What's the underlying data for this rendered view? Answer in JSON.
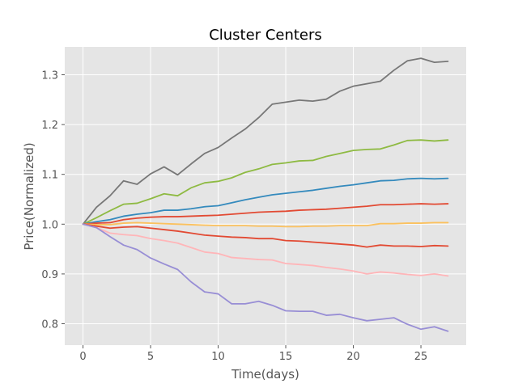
{
  "chart_data": {
    "type": "line",
    "title": "Cluster Centers",
    "xlabel": "Time(days)",
    "ylabel": "Price(Normalized)",
    "xlim": [
      -1.35,
      28.35
    ],
    "ylim": [
      0.757,
      1.356
    ],
    "xticks": [
      0,
      5,
      10,
      15,
      20,
      25
    ],
    "yticks": [
      0.8,
      0.9,
      1.0,
      1.1,
      1.2,
      1.3
    ],
    "ytick_labels": [
      "0.8",
      "0.9",
      "1.0",
      "1.1",
      "1.2",
      "1.3"
    ],
    "grid": true,
    "x": [
      0,
      1,
      2,
      3,
      4,
      5,
      6,
      7,
      8,
      9,
      10,
      11,
      12,
      13,
      14,
      15,
      16,
      17,
      18,
      19,
      20,
      21,
      22,
      23,
      24,
      25,
      26,
      27
    ],
    "series": [
      {
        "color": "#777777",
        "values": [
          1.0,
          1.034,
          1.057,
          1.087,
          1.08,
          1.101,
          1.115,
          1.099,
          1.121,
          1.142,
          1.154,
          1.173,
          1.191,
          1.214,
          1.241,
          1.245,
          1.249,
          1.247,
          1.251,
          1.267,
          1.277,
          1.282,
          1.287,
          1.309,
          1.328,
          1.333,
          1.325,
          1.327
        ]
      },
      {
        "color": "#8EBA42",
        "values": [
          1.0,
          1.013,
          1.027,
          1.04,
          1.042,
          1.051,
          1.061,
          1.057,
          1.073,
          1.083,
          1.086,
          1.093,
          1.104,
          1.111,
          1.12,
          1.123,
          1.127,
          1.128,
          1.136,
          1.142,
          1.148,
          1.15,
          1.151,
          1.159,
          1.168,
          1.169,
          1.167,
          1.169
        ]
      },
      {
        "color": "#348ABD",
        "values": [
          1.0,
          1.005,
          1.009,
          1.016,
          1.02,
          1.023,
          1.028,
          1.028,
          1.031,
          1.035,
          1.037,
          1.043,
          1.049,
          1.054,
          1.059,
          1.062,
          1.065,
          1.068,
          1.072,
          1.076,
          1.079,
          1.083,
          1.087,
          1.088,
          1.091,
          1.092,
          1.091,
          1.092
        ]
      },
      {
        "color": "#E24A33",
        "values": [
          1.0,
          1.002,
          1.003,
          1.009,
          1.012,
          1.014,
          1.015,
          1.015,
          1.016,
          1.017,
          1.018,
          1.02,
          1.022,
          1.024,
          1.025,
          1.026,
          1.028,
          1.029,
          1.03,
          1.032,
          1.034,
          1.036,
          1.039,
          1.039,
          1.04,
          1.041,
          1.04,
          1.041
        ]
      },
      {
        "color": "#FBC15E",
        "values": [
          1.0,
          0.999,
          0.999,
          1.002,
          1.003,
          1.002,
          1.001,
          1.0,
          0.999,
          0.998,
          0.997,
          0.997,
          0.997,
          0.996,
          0.996,
          0.995,
          0.995,
          0.996,
          0.996,
          0.997,
          0.997,
          0.997,
          1.001,
          1.001,
          1.002,
          1.002,
          1.003,
          1.003
        ]
      },
      {
        "color": "#E24A33",
        "values": [
          1.0,
          0.996,
          0.992,
          0.994,
          0.995,
          0.992,
          0.989,
          0.986,
          0.982,
          0.978,
          0.976,
          0.974,
          0.973,
          0.971,
          0.971,
          0.967,
          0.966,
          0.964,
          0.962,
          0.96,
          0.958,
          0.954,
          0.958,
          0.956,
          0.956,
          0.955,
          0.957,
          0.956
        ]
      },
      {
        "color": "#FFB5B8",
        "values": [
          1.0,
          0.993,
          0.982,
          0.979,
          0.977,
          0.971,
          0.967,
          0.962,
          0.953,
          0.944,
          0.941,
          0.933,
          0.931,
          0.929,
          0.928,
          0.921,
          0.919,
          0.917,
          0.913,
          0.91,
          0.906,
          0.9,
          0.904,
          0.902,
          0.899,
          0.897,
          0.9,
          0.896
        ]
      },
      {
        "color": "#988ED5",
        "values": [
          1.0,
          0.993,
          0.975,
          0.958,
          0.949,
          0.932,
          0.92,
          0.909,
          0.884,
          0.864,
          0.86,
          0.84,
          0.84,
          0.845,
          0.837,
          0.826,
          0.825,
          0.825,
          0.817,
          0.819,
          0.812,
          0.806,
          0.809,
          0.812,
          0.799,
          0.789,
          0.794,
          0.785
        ]
      }
    ]
  }
}
